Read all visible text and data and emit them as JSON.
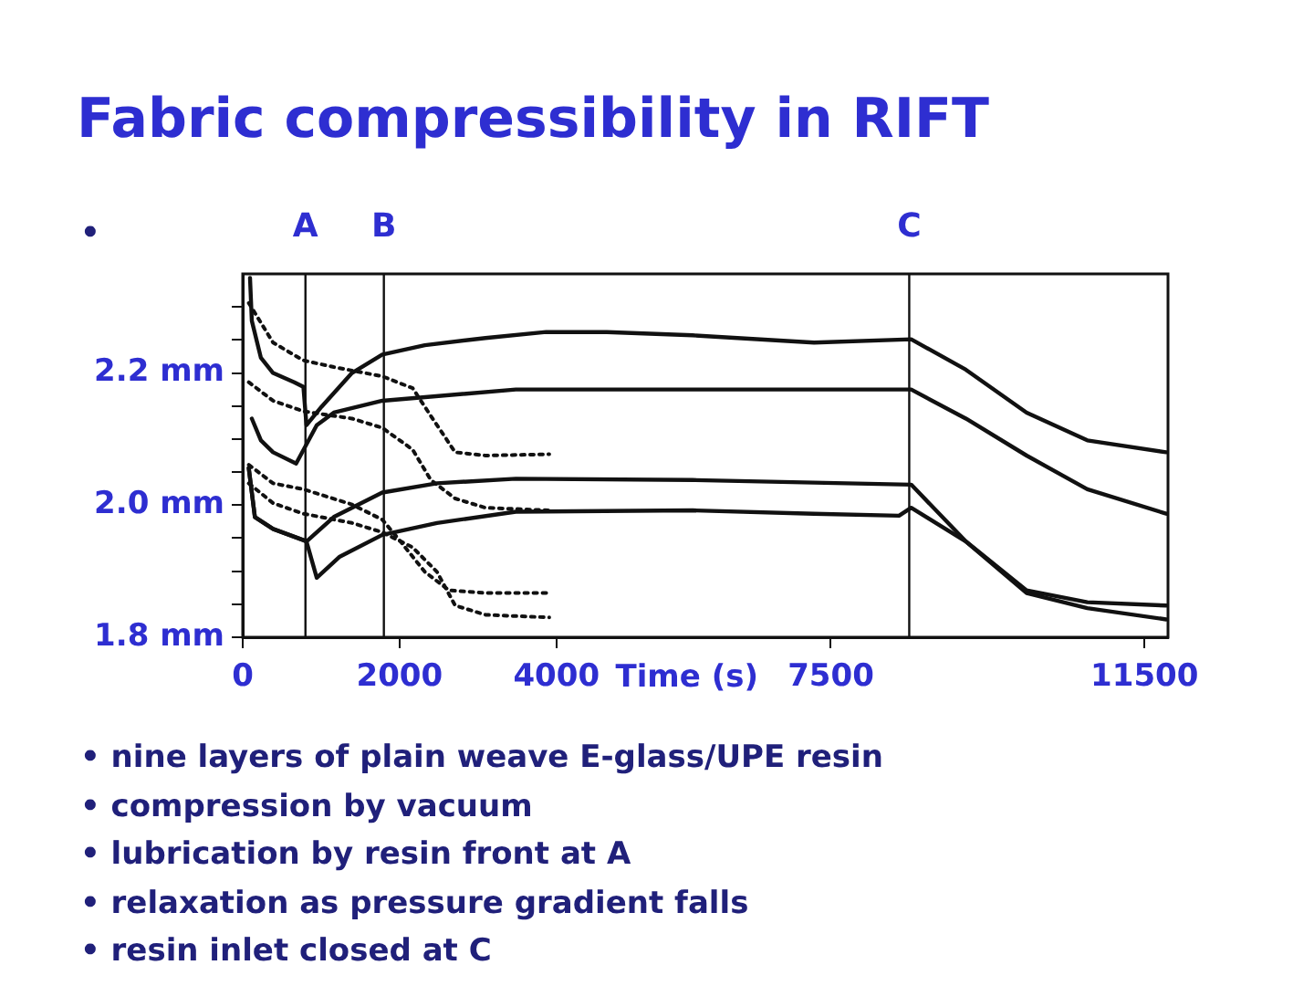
{
  "chart_data": {
    "type": "line",
    "title": "Fabric compressibility in RIFT",
    "xlabel": "Time (s)",
    "xlim": [
      0,
      11800
    ],
    "xticks": [
      0,
      2000,
      4000,
      7500,
      11500
    ],
    "ylim": [
      1.8,
      2.35
    ],
    "yticks": [
      {
        "value": 1.8,
        "label": "1.8 mm"
      },
      {
        "value": 1.85,
        "label": null
      },
      {
        "value": 1.9,
        "label": null
      },
      {
        "value": 1.95,
        "label": null
      },
      {
        "value": 2.0,
        "label": "2.0 mm"
      },
      {
        "value": 2.05,
        "label": null
      },
      {
        "value": 2.1,
        "label": null
      },
      {
        "value": 2.15,
        "label": null
      },
      {
        "value": 2.2,
        "label": "2.2 mm"
      },
      {
        "value": 2.25,
        "label": null
      },
      {
        "value": 2.3,
        "label": null
      }
    ],
    "grid": false,
    "legend": false,
    "marker": "none",
    "ref_lines": [
      {
        "axis": "x",
        "value": 800,
        "label": "A"
      },
      {
        "axis": "x",
        "value": 1800,
        "label": "B"
      },
      {
        "axis": "x",
        "value": 8500,
        "label": "C"
      }
    ],
    "series": [
      {
        "color": "#111111",
        "line_style": "solid",
        "x": [
          93,
          116,
          232,
          387,
          658,
          774,
          813,
          1006,
          1393,
          1780,
          2322,
          3096,
          3870,
          4644,
          5738,
          7286,
          8525,
          9222,
          9997,
          10771,
          11777
        ],
        "values": [
          2.344,
          2.279,
          2.223,
          2.2,
          2.186,
          2.179,
          2.121,
          2.149,
          2.2,
          2.228,
          2.242,
          2.253,
          2.262,
          2.262,
          2.257,
          2.246,
          2.251,
          2.205,
          2.14,
          2.098,
          2.08
        ]
      },
      {
        "color": "#111111",
        "line_style": "solid",
        "x": [
          116,
          232,
          387,
          681,
          944,
          1161,
          1780,
          3483,
          5738,
          8525,
          9222,
          9997,
          10771,
          11777
        ],
        "values": [
          2.131,
          2.098,
          2.08,
          2.063,
          2.121,
          2.14,
          2.158,
          2.175,
          2.175,
          2.175,
          2.131,
          2.075,
          2.024,
          1.987
        ]
      },
      {
        "color": "#111111",
        "line_style": "solid",
        "x": [
          77,
          155,
          387,
          774,
          813,
          1161,
          1780,
          2477,
          3483,
          5738,
          8525,
          9222,
          9997,
          10771,
          11777
        ],
        "values": [
          2.056,
          1.982,
          1.964,
          1.947,
          1.945,
          1.982,
          2.019,
          2.033,
          2.04,
          2.038,
          2.031,
          1.945,
          1.871,
          1.853,
          1.848
        ]
      },
      {
        "color": "#111111",
        "line_style": "solid",
        "x": [
          77,
          155,
          387,
          774,
          813,
          944,
          1238,
          1780,
          2477,
          3483,
          5738,
          7286,
          8370,
          8525,
          9222,
          9997,
          10771,
          11777
        ],
        "values": [
          2.056,
          1.982,
          1.964,
          1.947,
          1.945,
          1.89,
          1.922,
          1.955,
          1.973,
          1.99,
          1.992,
          1.987,
          1.984,
          1.996,
          1.945,
          1.867,
          1.844,
          1.827
        ]
      },
      {
        "color": "#111111",
        "line_style": "dotted",
        "x": [
          77,
          387,
          774,
          1161,
          1780,
          2167,
          2399,
          2709,
          3096,
          3909
        ],
        "values": [
          2.306,
          2.246,
          2.219,
          2.209,
          2.195,
          2.177,
          2.135,
          2.08,
          2.075,
          2.077
        ]
      },
      {
        "color": "#111111",
        "line_style": "dotted",
        "x": [
          77,
          387,
          774,
          1393,
          1780,
          2167,
          2399,
          2709,
          3096,
          3909
        ],
        "values": [
          2.186,
          2.158,
          2.142,
          2.131,
          2.117,
          2.084,
          2.038,
          2.01,
          1.996,
          1.992
        ]
      },
      {
        "color": "#111111",
        "line_style": "dotted",
        "x": [
          77,
          387,
          774,
          1393,
          1780,
          2012,
          2322,
          2632,
          3096,
          3909
        ],
        "values": [
          2.061,
          2.033,
          2.024,
          2.001,
          1.978,
          1.945,
          1.899,
          1.871,
          1.867,
          1.867
        ]
      },
      {
        "color": "#111111",
        "line_style": "dotted",
        "x": [
          77,
          387,
          774,
          1393,
          1780,
          2167,
          2477,
          2709,
          3096,
          3909
        ],
        "values": [
          2.033,
          2.003,
          1.987,
          1.973,
          1.959,
          1.936,
          1.899,
          1.848,
          1.834,
          1.83
        ]
      }
    ],
    "annotations": [
      "•",
      "• nine layers of plain weave E-glass/UPE resin",
      "• compression by vacuum",
      "• lubrication by resin front at A",
      "• relaxation as pressure gradient falls",
      "• resin inlet closed at C"
    ]
  }
}
